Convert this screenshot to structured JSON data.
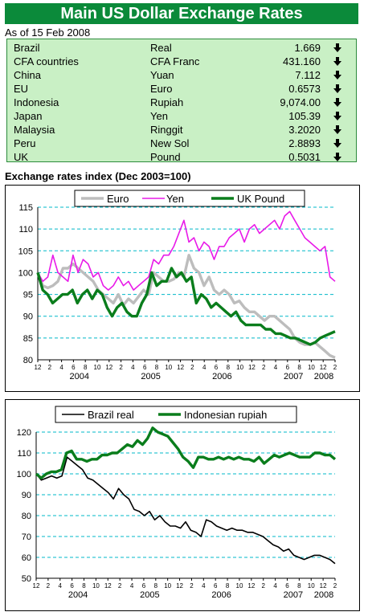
{
  "header": {
    "title": "Main US Dollar Exchange Rates",
    "as_of": "As of 15 Feb 2008"
  },
  "rates": [
    {
      "country": "Brazil",
      "currency": "Real",
      "value": "1.669"
    },
    {
      "country": "CFA countries",
      "currency": "CFA Franc",
      "value": "431.160"
    },
    {
      "country": "China",
      "currency": "Yuan",
      "value": "7.112"
    },
    {
      "country": "EU",
      "currency": "Euro",
      "value": "0.6573"
    },
    {
      "country": "Indonesia",
      "currency": "Rupiah",
      "value": "9,074.00"
    },
    {
      "country": "Japan",
      "currency": "Yen",
      "value": "105.39"
    },
    {
      "country": "Malaysia",
      "currency": "Ringgit",
      "value": "3.2020"
    },
    {
      "country": "Peru",
      "currency": "New Sol",
      "value": "2.8893"
    },
    {
      "country": "UK",
      "currency": "Pound",
      "value": "0.5031"
    }
  ],
  "colors": {
    "title_bg": "#0b8a3a",
    "table_bg": "#c9f0c5",
    "grid": "#00b8c8",
    "euro": "#bdbdbd",
    "yen": "#e81ae8",
    "gbp": "#0a7d1c",
    "brl": "#000000",
    "idr": "#0a7d1c"
  },
  "icons": {
    "trend": "down-arrow-icon"
  },
  "index_heading": "Exchange rates index (Dec 2003=100)",
  "chart_data": [
    {
      "type": "line",
      "ylim": [
        80,
        115
      ],
      "yticks": [
        80,
        85,
        90,
        95,
        100,
        105,
        110,
        115
      ],
      "month_ticks": [
        "12",
        "2",
        "4",
        "6",
        "8",
        "10",
        "12",
        "2",
        "4",
        "6",
        "8",
        "10",
        "12",
        "2",
        "4",
        "6",
        "8",
        "10",
        "12",
        "2",
        "4",
        "6",
        "8",
        "10",
        "12",
        "2"
      ],
      "year_labels": [
        "2004",
        "2005",
        "2006",
        "2007",
        "2008"
      ],
      "grid": true,
      "legend": "top",
      "x_start": "2003-12",
      "x_end": "2008-02",
      "series": [
        {
          "name": "Euro",
          "color_key": "euro",
          "values": [
            100,
            97,
            96.5,
            97,
            98,
            101,
            101,
            102,
            101,
            100,
            99,
            98,
            96,
            95,
            94,
            93,
            95,
            92.5,
            94,
            93,
            94.5,
            96,
            95,
            100,
            99,
            98,
            98,
            98.5,
            100,
            99,
            104,
            101,
            100,
            97,
            99,
            96,
            95,
            96,
            95,
            93,
            93.5,
            92,
            91,
            91,
            90,
            89,
            90,
            90,
            89,
            88,
            87,
            85,
            84,
            83.5,
            83.5,
            84,
            83,
            82,
            81,
            80.5
          ]
        },
        {
          "name": "Yen",
          "color_key": "yen",
          "values": [
            100,
            98,
            99,
            104,
            100,
            99,
            98,
            104,
            100,
            103,
            102,
            99,
            100,
            97,
            96,
            97,
            99,
            97,
            98,
            96,
            97,
            98,
            99,
            103,
            102,
            104,
            104,
            106,
            109,
            112,
            107,
            108,
            105,
            107,
            106,
            103,
            106,
            106,
            108,
            109,
            110,
            107,
            110,
            111,
            109,
            110,
            111,
            112,
            110,
            113,
            114,
            112,
            110,
            108,
            107,
            106,
            105,
            106,
            99,
            98
          ]
        },
        {
          "name": "UK Pound",
          "color_key": "gbp",
          "values": [
            100,
            96,
            95,
            93,
            94,
            95,
            95,
            96,
            93,
            95,
            96,
            94,
            96,
            95,
            92,
            90,
            92,
            93,
            91,
            90,
            90,
            93,
            95,
            100,
            97,
            98,
            98,
            101,
            99,
            100,
            98,
            99,
            93,
            95,
            94,
            92,
            93,
            92,
            91,
            90,
            91,
            89,
            88,
            88,
            88,
            88,
            87,
            87,
            86,
            86,
            85.5,
            85,
            85,
            84.5,
            84,
            83.5,
            84,
            85,
            85.5,
            86,
            86.5
          ]
        }
      ]
    },
    {
      "type": "line",
      "ylim": [
        50,
        120
      ],
      "yticks": [
        50,
        60,
        70,
        80,
        90,
        100,
        110,
        120
      ],
      "month_ticks": [
        "12",
        "2",
        "4",
        "6",
        "8",
        "10",
        "12",
        "2",
        "4",
        "6",
        "8",
        "10",
        "12",
        "2",
        "4",
        "6",
        "8",
        "10",
        "12",
        "2",
        "4",
        "6",
        "8",
        "10",
        "12",
        "2"
      ],
      "year_labels": [
        "2004",
        "2005",
        "2006",
        "2007",
        "2008"
      ],
      "grid": true,
      "legend": "top",
      "x_start": "2003-12",
      "x_end": "2008-02",
      "series": [
        {
          "name": "Brazil real",
          "color_key": "brl",
          "values": [
            100,
            97,
            98,
            99,
            98,
            99,
            108,
            106,
            104,
            102,
            98,
            97,
            95,
            93,
            91,
            88,
            93,
            90,
            88,
            83,
            82,
            80,
            82,
            78,
            80,
            77,
            75,
            75,
            74,
            77,
            73,
            72,
            70,
            78,
            77,
            75,
            74,
            73,
            74,
            73,
            73,
            72,
            72,
            71,
            70,
            68,
            66,
            65,
            63,
            64,
            61,
            60,
            59,
            60,
            61,
            61,
            60,
            59,
            57
          ]
        },
        {
          "name": "Indonesian rupiah",
          "color_key": "idr",
          "values": [
            100,
            98,
            100,
            101,
            101,
            102,
            110,
            111,
            107,
            107,
            106,
            107,
            107,
            109,
            109,
            110,
            110,
            112,
            114,
            113,
            116,
            114,
            117,
            122,
            120,
            119,
            118,
            115,
            112,
            108,
            106,
            103,
            108,
            108,
            107,
            107,
            108,
            107,
            108,
            107,
            108,
            107,
            107,
            106,
            108,
            105,
            107,
            109,
            108,
            109,
            110,
            109,
            108,
            108,
            108,
            110,
            110,
            109,
            109,
            107
          ]
        }
      ]
    }
  ]
}
